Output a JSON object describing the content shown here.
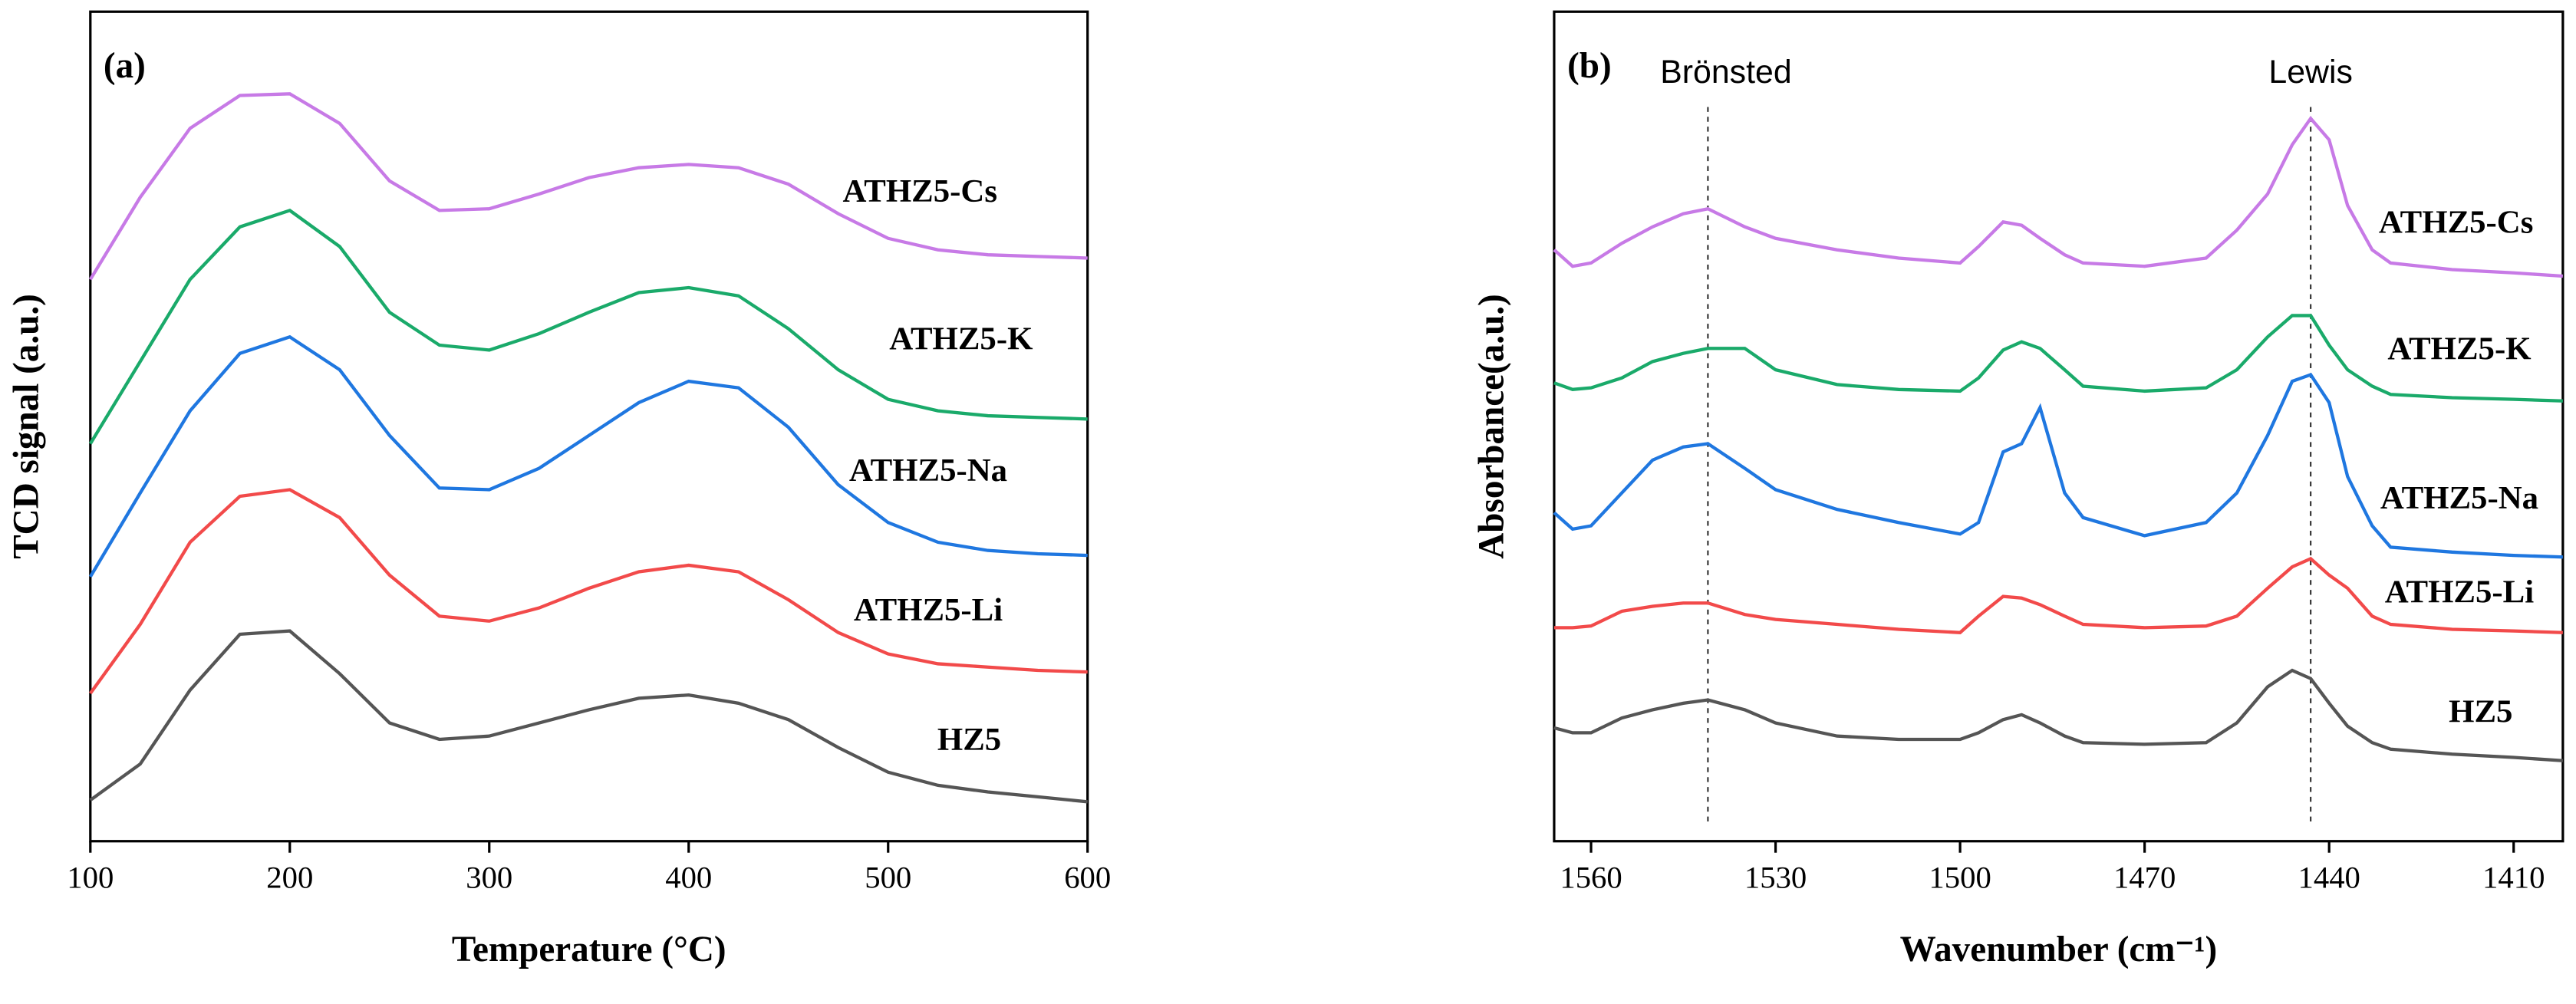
{
  "chart_data": [
    {
      "type": "line",
      "panel_label": "(a)",
      "x_label": "Temperature (°C)",
      "y_label": "TCD signal (a.u.)",
      "x": [
        100,
        125,
        150,
        175,
        200,
        225,
        250,
        275,
        300,
        325,
        350,
        375,
        400,
        425,
        450,
        475,
        500,
        525,
        550,
        575,
        600
      ],
      "xlim": [
        100,
        600
      ],
      "xticks": [
        100,
        200,
        300,
        400,
        500,
        600
      ],
      "ylim": [
        0,
        505
      ],
      "series": [
        {
          "name": "HZ5",
          "color": "#555555",
          "values": [
            25,
            47,
            92,
            126,
            128,
            102,
            72,
            62,
            64,
            72,
            80,
            87,
            89,
            84,
            74,
            57,
            42,
            34,
            30,
            27,
            24
          ]
        },
        {
          "name": "ATHZ5-Li",
          "color": "#f24a4a",
          "values": [
            90,
            132,
            182,
            210,
            214,
            197,
            162,
            137,
            134,
            142,
            154,
            164,
            168,
            164,
            147,
            127,
            114,
            108,
            106,
            104,
            103
          ]
        },
        {
          "name": "ATHZ5-Na",
          "color": "#1f77e0",
          "values": [
            161,
            212,
            262,
            297,
            307,
            287,
            247,
            215,
            214,
            227,
            247,
            267,
            280,
            276,
            252,
            217,
            194,
            182,
            177,
            175,
            174
          ]
        },
        {
          "name": "ATHZ5-K",
          "color": "#1aaa6a",
          "values": [
            242,
            292,
            342,
            374,
            384,
            362,
            322,
            302,
            299,
            309,
            322,
            334,
            337,
            332,
            312,
            287,
            269,
            262,
            259,
            258,
            257
          ]
        },
        {
          "name": "ATHZ5-Cs",
          "color": "#c77ae6",
          "values": [
            342,
            392,
            434,
            454,
            455,
            437,
            402,
            384,
            385,
            394,
            404,
            410,
            412,
            410,
            400,
            382,
            367,
            360,
            357,
            356,
            355
          ]
        }
      ]
    },
    {
      "type": "line",
      "panel_label": "(b)",
      "x_label": "Wavenumber (cm⁻¹)",
      "y_label": "Absorbance(a.u.)",
      "x": [
        1566,
        1563,
        1560,
        1555,
        1550,
        1545,
        1541,
        1535,
        1530,
        1520,
        1510,
        1500,
        1497,
        1493,
        1490,
        1487,
        1483,
        1480,
        1470,
        1460,
        1455,
        1450,
        1446,
        1443,
        1440,
        1437,
        1433,
        1430,
        1420,
        1410,
        1402
      ],
      "xlim": [
        1566,
        1402
      ],
      "xticks": [
        1560,
        1530,
        1500,
        1470,
        1440,
        1410
      ],
      "ylim": [
        0,
        505
      ],
      "annotations": [
        {
          "text": "Brönsted",
          "x": 1541
        },
        {
          "text": "Lewis",
          "x": 1443
        }
      ],
      "series": [
        {
          "name": "HZ5",
          "color": "#555555",
          "values": [
            69,
            66,
            66,
            75,
            80,
            84,
            86,
            80,
            72,
            64,
            62,
            62,
            66,
            74,
            77,
            72,
            64,
            60,
            59,
            60,
            72,
            94,
            104,
            99,
            84,
            70,
            60,
            56,
            53,
            51,
            49
          ]
        },
        {
          "name": "ATHZ5-Li",
          "color": "#f24a4a",
          "values": [
            130,
            130,
            131,
            140,
            143,
            145,
            145,
            138,
            135,
            132,
            129,
            127,
            137,
            149,
            148,
            144,
            137,
            132,
            130,
            131,
            137,
            154,
            167,
            172,
            162,
            154,
            137,
            132,
            129,
            128,
            127
          ]
        },
        {
          "name": "ATHZ5-Na",
          "color": "#1f77e0",
          "values": [
            200,
            190,
            192,
            212,
            232,
            240,
            242,
            227,
            214,
            202,
            194,
            187,
            194,
            237,
            242,
            264,
            212,
            197,
            186,
            194,
            212,
            247,
            280,
            284,
            267,
            222,
            192,
            179,
            176,
            174,
            173
          ]
        },
        {
          "name": "ATHZ5-K",
          "color": "#1aaa6a",
          "values": [
            279,
            275,
            276,
            282,
            292,
            297,
            300,
            300,
            287,
            278,
            275,
            274,
            282,
            299,
            304,
            300,
            287,
            277,
            274,
            276,
            287,
            307,
            320,
            320,
            302,
            287,
            277,
            272,
            270,
            269,
            268
          ]
        },
        {
          "name": "ATHZ5-Cs",
          "color": "#c77ae6",
          "values": [
            360,
            350,
            352,
            364,
            374,
            382,
            385,
            374,
            367,
            360,
            355,
            352,
            362,
            377,
            375,
            367,
            357,
            352,
            350,
            355,
            372,
            394,
            424,
            440,
            427,
            387,
            360,
            352,
            348,
            346,
            344
          ]
        }
      ]
    }
  ]
}
